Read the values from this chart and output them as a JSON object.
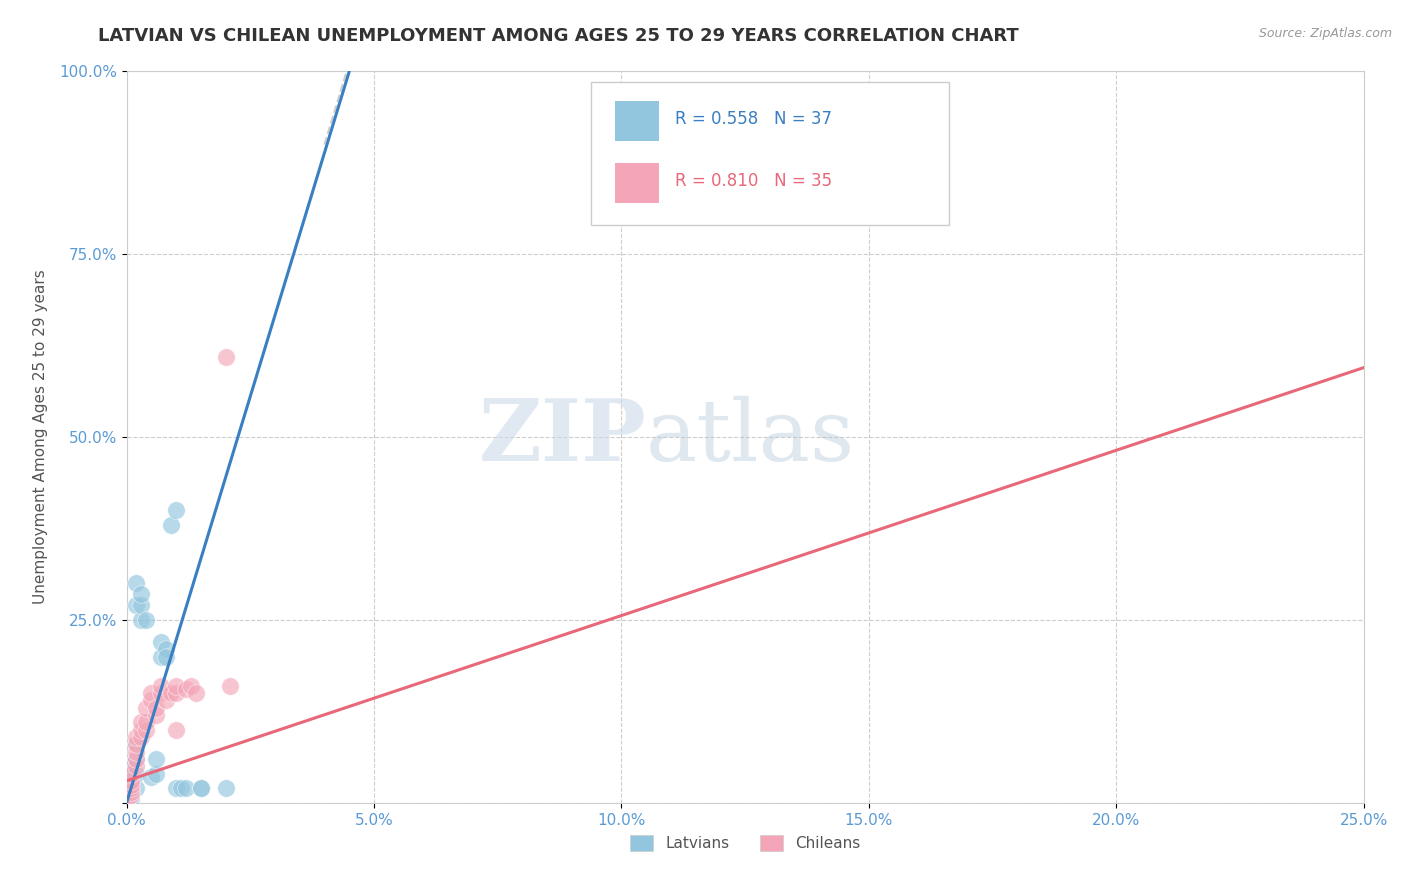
{
  "title": "LATVIAN VS CHILEAN UNEMPLOYMENT AMONG AGES 25 TO 29 YEARS CORRELATION CHART",
  "source": "Source: ZipAtlas.com",
  "ylabel": "Unemployment Among Ages 25 to 29 years",
  "xlim": [
    0.0,
    0.25
  ],
  "ylim": [
    0.0,
    1.0
  ],
  "xticks": [
    0.0,
    0.05,
    0.1,
    0.15,
    0.2,
    0.25
  ],
  "yticks": [
    0.0,
    0.25,
    0.5,
    0.75,
    1.0
  ],
  "xticklabels": [
    "0.0%",
    "5.0%",
    "10.0%",
    "15.0%",
    "20.0%",
    "25.0%"
  ],
  "yticklabels": [
    "",
    "25.0%",
    "50.0%",
    "75.0%",
    "100.0%"
  ],
  "latvian_R": 0.558,
  "latvian_N": 37,
  "chilean_R": 0.81,
  "chilean_N": 35,
  "latvian_color": "#92c5de",
  "chilean_color": "#f4a6b8",
  "latvian_line_color": "#3a7fc1",
  "chilean_line_color": "#e8687a",
  "watermark_zip": "ZIP",
  "watermark_atlas": "atlas",
  "latvian_pts": [
    [
      0.0,
      0.005
    ],
    [
      0.0,
      0.008
    ],
    [
      0.0,
      0.01
    ],
    [
      0.0,
      0.012
    ],
    [
      0.001,
      0.005
    ],
    [
      0.001,
      0.01
    ],
    [
      0.001,
      0.015
    ],
    [
      0.001,
      0.02
    ],
    [
      0.001,
      0.025
    ],
    [
      0.001,
      0.03
    ],
    [
      0.001,
      0.04
    ],
    [
      0.001,
      0.05
    ],
    [
      0.002,
      0.02
    ],
    [
      0.002,
      0.04
    ],
    [
      0.002,
      0.06
    ],
    [
      0.002,
      0.08
    ],
    [
      0.002,
      0.27
    ],
    [
      0.002,
      0.3
    ],
    [
      0.003,
      0.25
    ],
    [
      0.003,
      0.27
    ],
    [
      0.003,
      0.285
    ],
    [
      0.004,
      0.25
    ],
    [
      0.005,
      0.035
    ],
    [
      0.006,
      0.04
    ],
    [
      0.006,
      0.06
    ],
    [
      0.007,
      0.2
    ],
    [
      0.007,
      0.22
    ],
    [
      0.008,
      0.21
    ],
    [
      0.008,
      0.2
    ],
    [
      0.009,
      0.38
    ],
    [
      0.01,
      0.4
    ],
    [
      0.01,
      0.02
    ],
    [
      0.011,
      0.02
    ],
    [
      0.012,
      0.02
    ],
    [
      0.015,
      0.02
    ],
    [
      0.015,
      0.02
    ],
    [
      0.02,
      0.02
    ]
  ],
  "chilean_pts": [
    [
      0.0,
      0.005
    ],
    [
      0.0,
      0.01
    ],
    [
      0.001,
      0.01
    ],
    [
      0.001,
      0.015
    ],
    [
      0.001,
      0.02
    ],
    [
      0.001,
      0.025
    ],
    [
      0.001,
      0.03
    ],
    [
      0.001,
      0.04
    ],
    [
      0.002,
      0.05
    ],
    [
      0.002,
      0.06
    ],
    [
      0.002,
      0.07
    ],
    [
      0.002,
      0.08
    ],
    [
      0.002,
      0.09
    ],
    [
      0.003,
      0.09
    ],
    [
      0.003,
      0.1
    ],
    [
      0.003,
      0.11
    ],
    [
      0.004,
      0.1
    ],
    [
      0.004,
      0.11
    ],
    [
      0.004,
      0.13
    ],
    [
      0.005,
      0.14
    ],
    [
      0.005,
      0.15
    ],
    [
      0.006,
      0.12
    ],
    [
      0.006,
      0.13
    ],
    [
      0.007,
      0.15
    ],
    [
      0.007,
      0.16
    ],
    [
      0.008,
      0.14
    ],
    [
      0.009,
      0.15
    ],
    [
      0.01,
      0.15
    ],
    [
      0.01,
      0.16
    ],
    [
      0.012,
      0.155
    ],
    [
      0.013,
      0.16
    ],
    [
      0.02,
      0.61
    ],
    [
      0.021,
      0.16
    ],
    [
      0.01,
      0.1
    ],
    [
      0.014,
      0.15
    ]
  ],
  "lv_line_x0": 0.0,
  "lv_line_y0": 0.0,
  "lv_line_x1": 0.045,
  "lv_line_y1": 1.0,
  "ch_line_x0": 0.0,
  "ch_line_y0": 0.03,
  "ch_line_x1": 0.25,
  "ch_line_y1": 0.595
}
